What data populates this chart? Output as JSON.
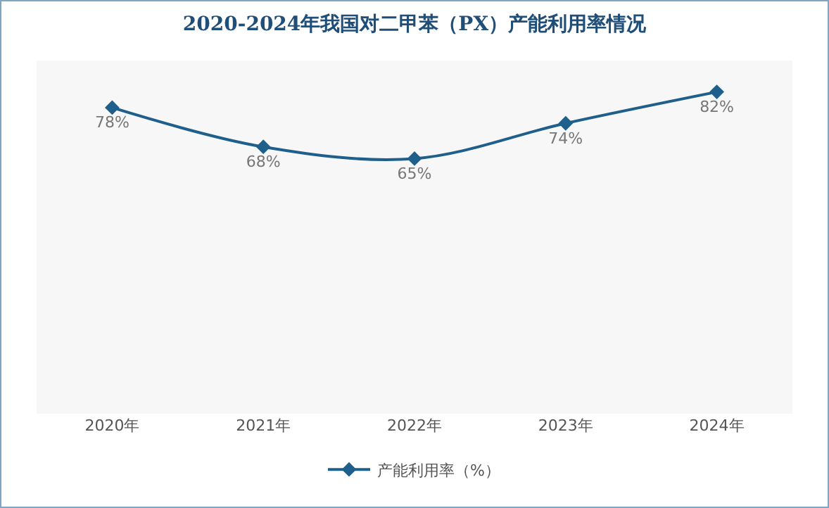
{
  "chart_data": {
    "type": "line",
    "title": "2020-2024年我国对二甲苯（PX）产能利用率情况",
    "categories": [
      "2020年",
      "2021年",
      "2022年",
      "2023年",
      "2024年"
    ],
    "series": [
      {
        "name": "产能利用率（%）",
        "color": "#1f5f8b",
        "values": [
          78,
          68,
          65,
          74,
          82
        ],
        "value_labels": [
          "78%",
          "68%",
          "65%",
          "74%",
          "82%"
        ]
      }
    ],
    "ylim": [
      0,
      90
    ],
    "tick_labels": "x",
    "grid": false,
    "legend": "bottom",
    "marker": "diamond",
    "line_style": "solid"
  }
}
